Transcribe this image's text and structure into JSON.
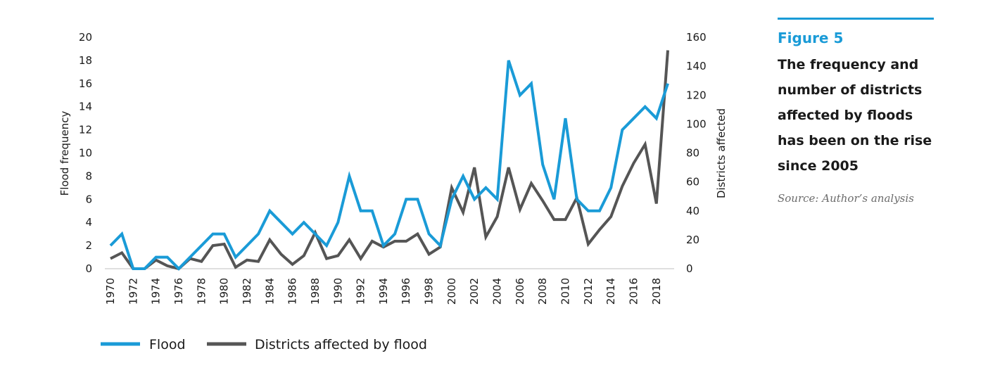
{
  "figure": {
    "label": "Figure 5",
    "caption": "The frequency and number of districts affected by floods has been on the rise since 2005",
    "source": "Source: Author’s  analysis",
    "accent_color": "#1a9bd7"
  },
  "chart_data": {
    "type": "line",
    "title": "",
    "x": [
      1970,
      1971,
      1972,
      1973,
      1974,
      1975,
      1976,
      1977,
      1978,
      1979,
      1980,
      1981,
      1982,
      1983,
      1984,
      1985,
      1986,
      1987,
      1988,
      1989,
      1990,
      1991,
      1992,
      1993,
      1994,
      1995,
      1996,
      1997,
      1998,
      1999,
      2000,
      2001,
      2002,
      2003,
      2004,
      2005,
      2006,
      2007,
      2008,
      2009,
      2010,
      2011,
      2012,
      2013,
      2014,
      2015,
      2016,
      2017,
      2018,
      2019
    ],
    "x_tick_labels": [
      "1970",
      "1972",
      "1974",
      "1976",
      "1978",
      "1980",
      "1982",
      "1984",
      "1986",
      "1988",
      "1990",
      "1992",
      "1994",
      "1996",
      "1998",
      "2000",
      "2002",
      "2004",
      "2006",
      "2008",
      "2010",
      "2012",
      "2014",
      "2016",
      "2018"
    ],
    "series": [
      {
        "name": "Flood",
        "axis": "left",
        "color": "#1a9bd7",
        "values": [
          2,
          3,
          0,
          0,
          1,
          1,
          0,
          1,
          2,
          3,
          3,
          1,
          2,
          3,
          5,
          4,
          3,
          4,
          3,
          2,
          4,
          8,
          5,
          5,
          2,
          3,
          6,
          6,
          3,
          2,
          6,
          8,
          6,
          7,
          6,
          18,
          15,
          16,
          9,
          6,
          13,
          6,
          5,
          5,
          7,
          12,
          13,
          14,
          13,
          16
        ]
      },
      {
        "name": "Districts affected by flood",
        "axis": "right",
        "color": "#555555",
        "values": [
          7,
          11,
          0,
          0,
          6,
          2,
          0,
          7,
          5,
          16,
          17,
          1,
          6,
          5,
          20,
          10,
          3,
          9,
          25,
          7,
          9,
          20,
          7,
          19,
          15,
          19,
          19,
          24,
          10,
          15,
          56,
          39,
          70,
          22,
          36,
          70,
          41,
          59,
          47,
          34,
          34,
          49,
          17,
          27,
          36,
          57,
          73,
          86,
          45,
          151
        ]
      }
    ],
    "y_left": {
      "label": "Flood frequency",
      "ylim": [
        0,
        20
      ],
      "ticks": [
        0,
        2,
        4,
        6,
        8,
        10,
        12,
        14,
        16,
        18,
        20
      ]
    },
    "y_right": {
      "label": "Districts affected",
      "ylim": [
        0,
        160
      ],
      "ticks": [
        0,
        20,
        40,
        60,
        80,
        100,
        120,
        140,
        160
      ]
    },
    "grid": false,
    "legend": "bottom-left"
  }
}
